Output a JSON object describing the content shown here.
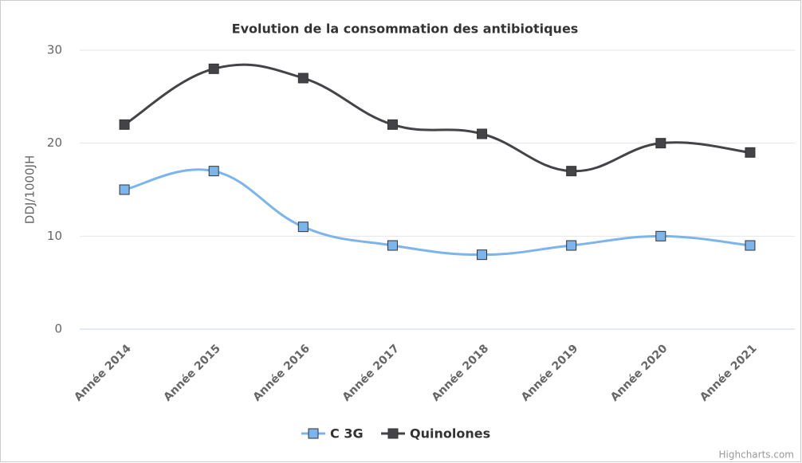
{
  "chart_data": {
    "type": "line",
    "smooth": true,
    "title": "Evolution de la consommation des antibiotiques",
    "y_axis_label": "DDJ/1000JH",
    "credits": "Highcharts.com",
    "categories": [
      "Année 2014",
      "Année 2015",
      "Année 2016",
      "Année 2017",
      "Année 2018",
      "Année 2019",
      "Année 2020",
      "Année 2021"
    ],
    "series": [
      {
        "name": "C 3G",
        "color": "#7cb5ec",
        "values": [
          15,
          17,
          11,
          9,
          8,
          9,
          10,
          9
        ]
      },
      {
        "name": "Quinolones",
        "color": "#434348",
        "values": [
          22,
          28,
          27,
          22,
          21,
          17,
          20,
          19
        ]
      }
    ],
    "ylim": [
      0,
      30
    ],
    "yticks": [
      0,
      10,
      20,
      30
    ],
    "grid": true,
    "legend": "bottom"
  }
}
